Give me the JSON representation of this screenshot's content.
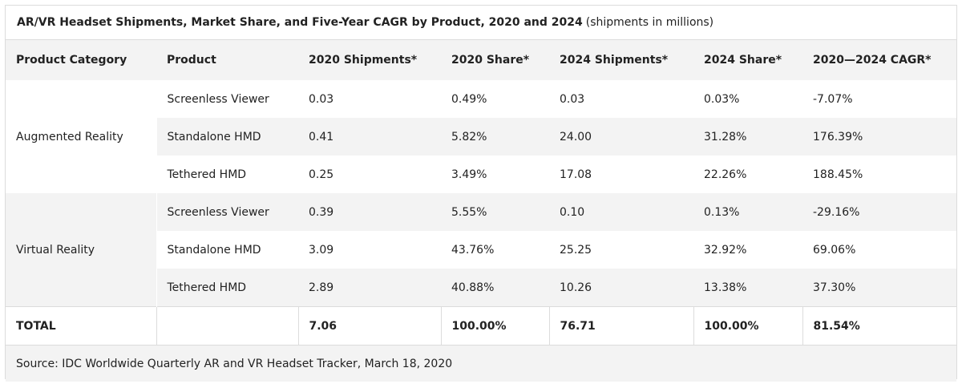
{
  "chart_data": {
    "type": "table",
    "title": "AR/VR Headset Shipments, Market Share, and Five-Year CAGR by Product, 2020 and 2024",
    "subtitle": "(shipments in millions)",
    "columns": [
      "Product Category",
      "Product",
      "2020 Shipments*",
      "2020 Share*",
      "2024 Shipments*",
      "2024 Share*",
      "2020—2024 CAGR*"
    ],
    "groups": [
      {
        "category": "Augmented Reality",
        "rows": [
          {
            "product": "Screenless Viewer",
            "ship_2020": "0.03",
            "share_2020": "0.49%",
            "ship_2024": "0.03",
            "share_2024": "0.03%",
            "cagr": "-7.07%"
          },
          {
            "product": "Standalone HMD",
            "ship_2020": "0.41",
            "share_2020": "5.82%",
            "ship_2024": "24.00",
            "share_2024": "31.28%",
            "cagr": "176.39%"
          },
          {
            "product": "Tethered HMD",
            "ship_2020": "0.25",
            "share_2020": "3.49%",
            "ship_2024": "17.08",
            "share_2024": "22.26%",
            "cagr": "188.45%"
          }
        ]
      },
      {
        "category": "Virtual Reality",
        "rows": [
          {
            "product": "Screenless Viewer",
            "ship_2020": "0.39",
            "share_2020": "5.55%",
            "ship_2024": "0.10",
            "share_2024": "0.13%",
            "cagr": "-29.16%"
          },
          {
            "product": "Standalone HMD",
            "ship_2020": "3.09",
            "share_2020": "43.76%",
            "ship_2024": "25.25",
            "share_2024": "32.92%",
            "cagr": "69.06%"
          },
          {
            "product": "Tethered HMD",
            "ship_2020": "2.89",
            "share_2020": "40.88%",
            "ship_2024": "10.26",
            "share_2024": "13.38%",
            "cagr": "37.30%"
          }
        ]
      }
    ],
    "total": {
      "label": "TOTAL",
      "product": "",
      "ship_2020": "7.06",
      "share_2020": "100.00%",
      "ship_2024": "76.71",
      "share_2024": "100.00%",
      "cagr": "81.54%"
    },
    "source": "Source: IDC Worldwide Quarterly AR and VR Headset Tracker, March 18, 2020"
  }
}
